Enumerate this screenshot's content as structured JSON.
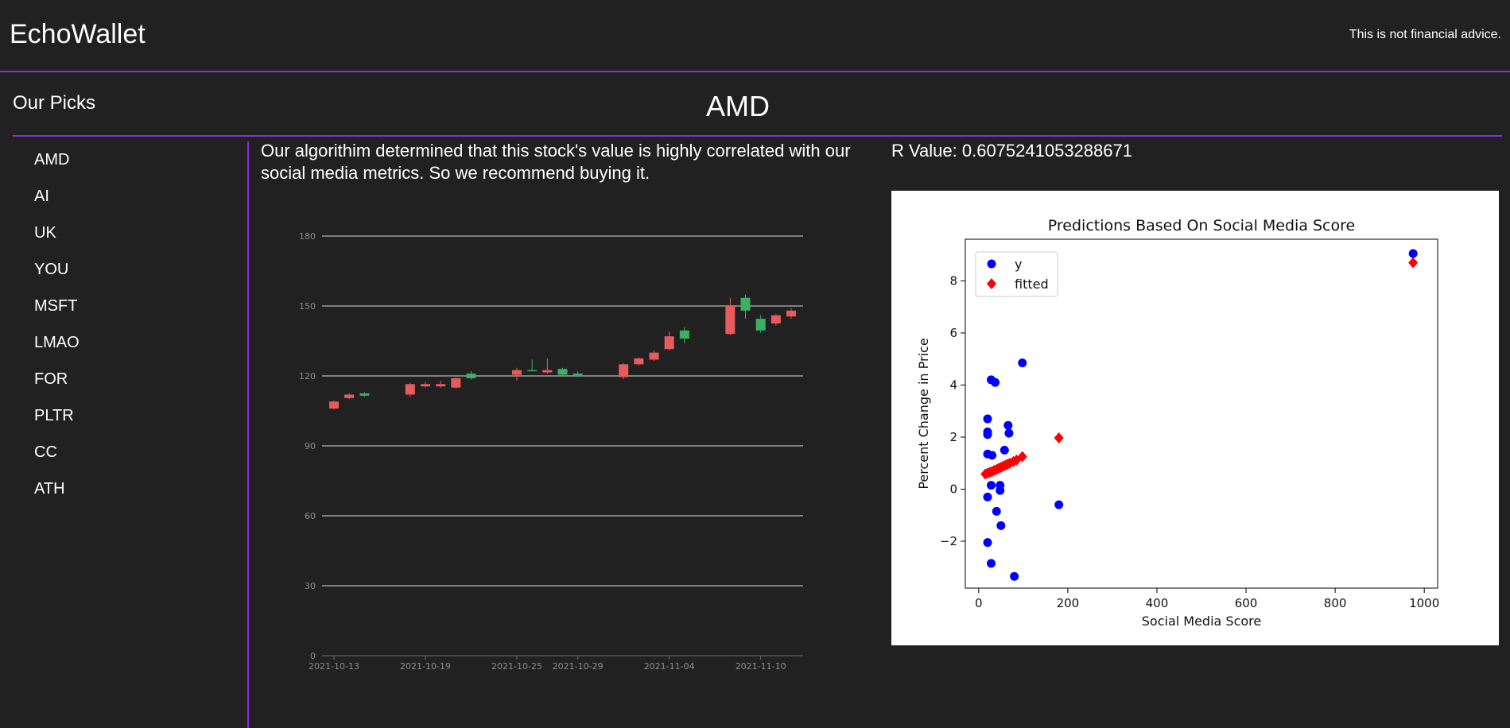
{
  "header": {
    "brand": "EchoWallet",
    "disclaimer": "This is not financial advice."
  },
  "sidebar": {
    "title": "Our Picks",
    "items": [
      {
        "label": "AMD"
      },
      {
        "label": "AI"
      },
      {
        "label": "UK"
      },
      {
        "label": "YOU"
      },
      {
        "label": "MSFT"
      },
      {
        "label": "LMAO"
      },
      {
        "label": "FOR"
      },
      {
        "label": "PLTR"
      },
      {
        "label": "CC"
      },
      {
        "label": "ATH"
      }
    ]
  },
  "main": {
    "ticker": "AMD",
    "description": "Our algorithim determined that this stock's value is highly correlated with our social media metrics. So we recommend buying it.",
    "r_value_text": "R Value: 0.6075241053288671"
  },
  "colors": {
    "accent": "#8a2be2",
    "background": "#212121",
    "up": "#3dae63",
    "down": "#e85b5b",
    "scatter_y": "#0000ff",
    "scatter_fitted": "#ff0000"
  },
  "chart_data": [
    {
      "type": "candlestick",
      "title": "",
      "ylim": [
        0,
        180
      ],
      "yticks": [
        0,
        30,
        60,
        90,
        120,
        150,
        180
      ],
      "xtick_labels": [
        "2021-10-13",
        "2021-10-19",
        "2021-10-25",
        "2021-10-29",
        "2021-11-04",
        "2021-11-10"
      ],
      "grid": true,
      "series": [
        {
          "x": "2021-10-13",
          "open": 109,
          "high": 109.5,
          "low": 105.5,
          "close": 106
        },
        {
          "x": "2021-10-14",
          "open": 112,
          "high": 112.5,
          "low": 110,
          "close": 110.5
        },
        {
          "x": "2021-10-15",
          "open": 111.5,
          "high": 113,
          "low": 111,
          "close": 112.5
        },
        {
          "x": "2021-10-18",
          "open": 116.5,
          "high": 117,
          "low": 111,
          "close": 112
        },
        {
          "x": "2021-10-19",
          "open": 116.5,
          "high": 117.5,
          "low": 115,
          "close": 115.5
        },
        {
          "x": "2021-10-20",
          "open": 116.5,
          "high": 118,
          "low": 115,
          "close": 115.5
        },
        {
          "x": "2021-10-21",
          "open": 119,
          "high": 119.5,
          "low": 114.5,
          "close": 115
        },
        {
          "x": "2021-10-22",
          "open": 119,
          "high": 122,
          "low": 118.5,
          "close": 121
        },
        {
          "x": "2021-10-25",
          "open": 122.5,
          "high": 123.5,
          "low": 118,
          "close": 120.5
        },
        {
          "x": "2021-10-26",
          "open": 122,
          "high": 127,
          "low": 122,
          "close": 122.5
        },
        {
          "x": "2021-10-27",
          "open": 122.5,
          "high": 127.5,
          "low": 121,
          "close": 121.5
        },
        {
          "x": "2021-10-28",
          "open": 120.5,
          "high": 123.5,
          "low": 120,
          "close": 123
        },
        {
          "x": "2021-10-29",
          "open": 120,
          "high": 122,
          "low": 119.5,
          "close": 121
        },
        {
          "x": "2021-11-01",
          "open": 125,
          "high": 125.5,
          "low": 118.5,
          "close": 119.5
        },
        {
          "x": "2021-11-02",
          "open": 127.5,
          "high": 128,
          "low": 124.5,
          "close": 125
        },
        {
          "x": "2021-11-03",
          "open": 130,
          "high": 131,
          "low": 126.5,
          "close": 127
        },
        {
          "x": "2021-11-04",
          "open": 137,
          "high": 139,
          "low": 131,
          "close": 131.5
        },
        {
          "x": "2021-11-05",
          "open": 136,
          "high": 141,
          "low": 134,
          "close": 139.5
        },
        {
          "x": "2021-11-08",
          "open": 150,
          "high": 153.5,
          "low": 137.5,
          "close": 138
        },
        {
          "x": "2021-11-09",
          "open": 148,
          "high": 155,
          "low": 144.5,
          "close": 153.5
        },
        {
          "x": "2021-11-10",
          "open": 139.5,
          "high": 146,
          "low": 138.5,
          "close": 144.5
        },
        {
          "x": "2021-11-11",
          "open": 146,
          "high": 146.5,
          "low": 141.5,
          "close": 142.5
        },
        {
          "x": "2021-11-12",
          "open": 148,
          "high": 149,
          "low": 144.5,
          "close": 145.5
        }
      ]
    },
    {
      "type": "scatter",
      "title": "Predictions Based On Social Media Score",
      "xlabel": "Social Media Score",
      "ylabel": "Percent Change in Price",
      "xlim": [
        -30,
        1030
      ],
      "ylim": [
        -3.8,
        9.6
      ],
      "xticks": [
        0,
        200,
        400,
        600,
        800,
        1000
      ],
      "yticks": [
        -2,
        0,
        2,
        4,
        6,
        8
      ],
      "ytick_labels": [
        "−2",
        "0",
        "2",
        "4",
        "6",
        "8"
      ],
      "legend_position": "top-left",
      "series": [
        {
          "name": "y",
          "marker": "circle",
          "points": [
            [
              20,
              2.7
            ],
            [
              20,
              2.2
            ],
            [
              20,
              2.1
            ],
            [
              20,
              1.35
            ],
            [
              20,
              -0.3
            ],
            [
              20,
              -2.05
            ],
            [
              28,
              4.2
            ],
            [
              28,
              0.15
            ],
            [
              28,
              -2.85
            ],
            [
              30,
              1.3
            ],
            [
              37,
              4.1
            ],
            [
              40,
              -0.85
            ],
            [
              48,
              0.15
            ],
            [
              48,
              -0.05
            ],
            [
              50,
              -1.4
            ],
            [
              58,
              1.5
            ],
            [
              66,
              2.45
            ],
            [
              68,
              2.15
            ],
            [
              80,
              -3.35
            ],
            [
              98,
              4.85
            ],
            [
              180,
              -0.6
            ],
            [
              975,
              9.05
            ]
          ]
        },
        {
          "name": "fitted",
          "marker": "diamond",
          "points": [
            [
              15,
              0.58
            ],
            [
              20,
              0.62
            ],
            [
              25,
              0.65
            ],
            [
              30,
              0.68
            ],
            [
              35,
              0.72
            ],
            [
              40,
              0.76
            ],
            [
              45,
              0.8
            ],
            [
              50,
              0.84
            ],
            [
              55,
              0.88
            ],
            [
              60,
              0.92
            ],
            [
              65,
              0.96
            ],
            [
              70,
              1.0
            ],
            [
              78,
              1.06
            ],
            [
              85,
              1.12
            ],
            [
              98,
              1.25
            ],
            [
              180,
              1.97
            ],
            [
              975,
              8.7
            ]
          ]
        }
      ]
    }
  ]
}
